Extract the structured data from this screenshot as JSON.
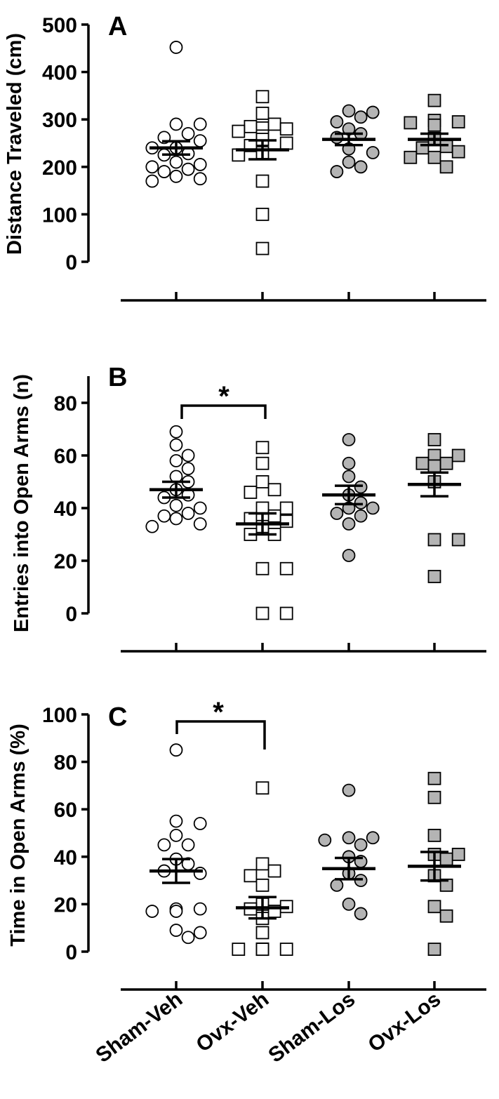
{
  "figure": {
    "categories": [
      "Sham-Veh",
      "Ovx-Veh",
      "Sham-Los",
      "Ovx-Los"
    ],
    "series_styles": [
      {
        "marker": "circle",
        "fill": "#ffffff"
      },
      {
        "marker": "square",
        "fill": "#ffffff"
      },
      {
        "marker": "circle",
        "fill": "#b4b4b4"
      },
      {
        "marker": "square",
        "fill": "#b4b4b4"
      }
    ],
    "edge_color": "#000000"
  },
  "chart_data": [
    {
      "type": "scatter",
      "panel": "A",
      "ylabel": "Distance Traveled (cm)",
      "ylim": [
        0,
        500
      ],
      "yticks": [
        0,
        100,
        200,
        300,
        400,
        500
      ],
      "categories": [
        "Sham-Veh",
        "Ovx-Veh",
        "Sham-Los",
        "Ovx-Los"
      ],
      "points": [
        [
          452,
          290,
          290,
          270,
          262,
          255,
          240,
          240,
          228,
          225,
          210,
          205,
          200,
          195,
          190,
          180,
          175,
          170
        ],
        [
          348,
          313,
          290,
          285,
          282,
          280,
          275,
          265,
          258,
          250,
          245,
          230,
          225,
          170,
          100,
          28
        ],
        [
          318,
          315,
          305,
          295,
          280,
          270,
          262,
          238,
          230,
          210,
          200,
          190
        ],
        [
          340,
          298,
          295,
          293,
          288,
          260,
          243,
          240,
          232,
          220,
          220,
          200
        ]
      ],
      "mean": [
        240,
        236,
        258,
        258
      ],
      "sem": [
        14,
        20,
        12,
        12
      ],
      "significance": []
    },
    {
      "type": "scatter",
      "panel": "B",
      "ylabel": "Entries into Open Arms (n)",
      "ylim": [
        0,
        80
      ],
      "yticks": [
        0,
        20,
        40,
        60,
        80
      ],
      "categories": [
        "Sham-Veh",
        "Ovx-Veh",
        "Sham-Los",
        "Ovx-Los"
      ],
      "points": [
        [
          69,
          64,
          60,
          58,
          55,
          52,
          50,
          47,
          45,
          44,
          41,
          40,
          38,
          37,
          36,
          34,
          33
        ],
        [
          63,
          57,
          50,
          47,
          46,
          40,
          40,
          37,
          36,
          35,
          33,
          30,
          30,
          17,
          17,
          0,
          0
        ],
        [
          66,
          57,
          52,
          48,
          45,
          42,
          40,
          40,
          38,
          37,
          34,
          22
        ],
        [
          66,
          60,
          60,
          57,
          57,
          56,
          56,
          50,
          28,
          28,
          14
        ]
      ],
      "mean": [
        47,
        34,
        45,
        49
      ],
      "sem": [
        3,
        4,
        3.5,
        4.5
      ],
      "significance": [
        {
          "from": "Sham-Veh",
          "to": "Ovx-Veh",
          "label": "*"
        }
      ]
    },
    {
      "type": "scatter",
      "panel": "C",
      "ylabel": "Time in Open Arms (%)",
      "ylim": [
        0,
        100
      ],
      "yticks": [
        0,
        20,
        40,
        60,
        80,
        100
      ],
      "categories": [
        "Sham-Veh",
        "Ovx-Veh",
        "Sham-Los",
        "Ovx-Los"
      ],
      "points": [
        [
          85,
          55,
          54,
          49,
          45,
          45,
          39,
          37,
          34,
          33,
          18,
          18,
          17,
          17,
          9,
          8,
          6
        ],
        [
          69,
          37,
          34,
          32,
          28,
          20,
          19,
          18,
          17,
          14,
          8,
          1,
          1,
          1,
          1,
          1,
          1
        ],
        [
          68,
          48,
          48,
          47,
          45,
          40,
          38,
          33,
          30,
          28,
          20,
          16
        ],
        [
          73,
          65,
          49,
          41,
          41,
          39,
          32,
          28,
          19,
          15,
          1
        ]
      ],
      "mean": [
        34,
        18.5,
        35,
        36
      ],
      "sem": [
        5,
        4.5,
        4.5,
        6
      ],
      "significance": [
        {
          "from": "Sham-Veh",
          "to": "Ovx-Veh",
          "label": "*"
        }
      ]
    }
  ]
}
